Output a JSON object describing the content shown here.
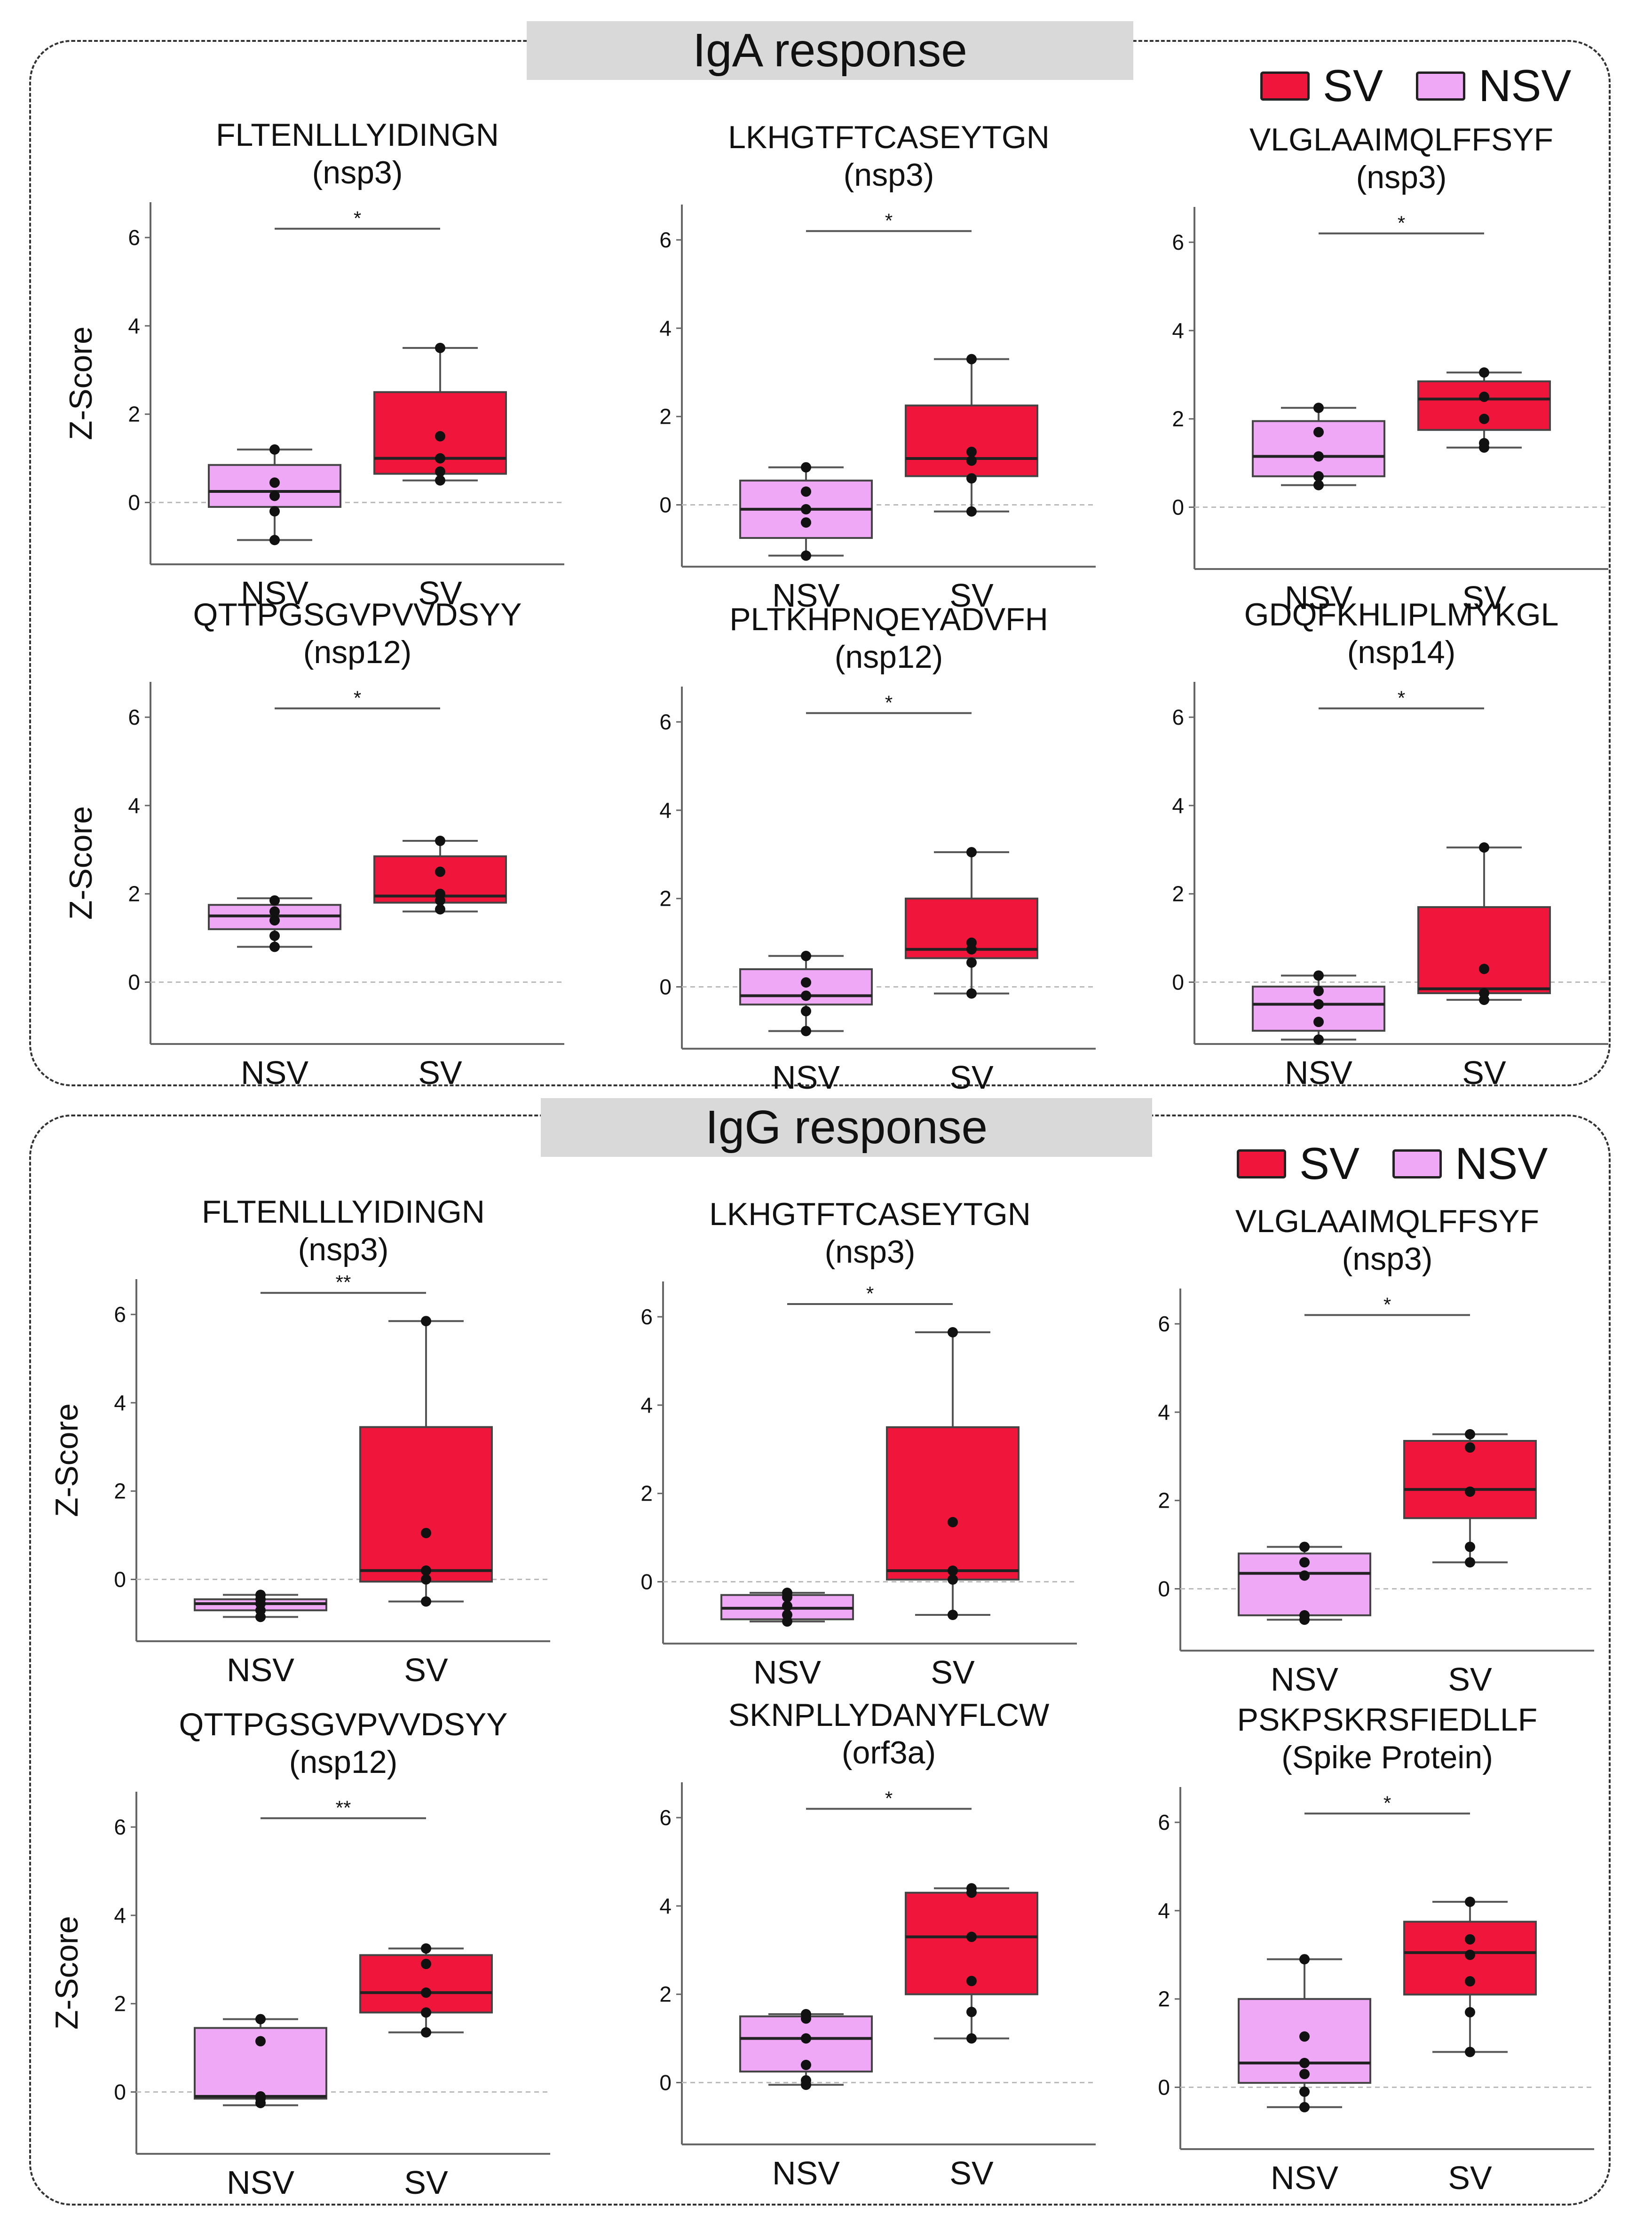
{
  "colors": {
    "sv": "#f0163b",
    "nsv": "#eea8f5",
    "axis": "#666666",
    "ref": "#bbbbbb",
    "text": "#111111"
  },
  "legend": {
    "sv_label": "SV",
    "nsv_label": "NSV"
  },
  "panels": [
    {
      "title": "IgA response"
    },
    {
      "title": "IgG response"
    }
  ],
  "chart_data": [
    {
      "type": "box",
      "panel": "IgA response",
      "title": "FLTENLLLYIDINGN",
      "subtitle": "(nsp3)",
      "ylabel": "Z-Score",
      "ylim": [
        -1.4,
        6.8
      ],
      "yticks": [
        0,
        2,
        4,
        6
      ],
      "categories": [
        "NSV",
        "SV"
      ],
      "significance": "*",
      "boxes": [
        {
          "group": "NSV",
          "whisker_low": -0.85,
          "q1": -0.1,
          "median": 0.25,
          "q3": 0.85,
          "whisker_high": 1.2,
          "points": [
            -0.85,
            -0.2,
            0.15,
            0.45,
            1.2
          ]
        },
        {
          "group": "SV",
          "whisker_low": 0.5,
          "q1": 0.65,
          "median": 1.0,
          "q3": 2.5,
          "whisker_high": 3.5,
          "points": [
            0.5,
            0.7,
            1.0,
            1.5,
            3.5
          ]
        }
      ]
    },
    {
      "type": "box",
      "panel": "IgA response",
      "title": "LKHGTFTCASEYTGN",
      "subtitle": "(nsp3)",
      "ylabel": "",
      "ylim": [
        -1.4,
        6.8
      ],
      "yticks": [
        0,
        2,
        4,
        6
      ],
      "categories": [
        "NSV",
        "SV"
      ],
      "significance": "*",
      "boxes": [
        {
          "group": "NSV",
          "whisker_low": -1.15,
          "q1": -0.75,
          "median": -0.1,
          "q3": 0.55,
          "whisker_high": 0.85,
          "points": [
            -1.15,
            -0.4,
            -0.1,
            0.3,
            0.85
          ]
        },
        {
          "group": "SV",
          "whisker_low": -0.15,
          "q1": 0.65,
          "median": 1.05,
          "q3": 2.25,
          "whisker_high": 3.3,
          "points": [
            -0.15,
            0.6,
            1.0,
            1.2,
            3.3
          ]
        }
      ]
    },
    {
      "type": "box",
      "panel": "IgA response",
      "title": "VLGLAAIMQLFFSYF",
      "subtitle": "(nsp3)",
      "ylabel": "",
      "ylim": [
        -1.4,
        6.8
      ],
      "yticks": [
        0,
        2,
        4,
        6
      ],
      "categories": [
        "NSV",
        "SV"
      ],
      "significance": "*",
      "boxes": [
        {
          "group": "NSV",
          "whisker_low": 0.5,
          "q1": 0.7,
          "median": 1.15,
          "q3": 1.95,
          "whisker_high": 2.25,
          "points": [
            0.5,
            0.7,
            1.15,
            1.7,
            2.25
          ]
        },
        {
          "group": "SV",
          "whisker_low": 1.35,
          "q1": 1.75,
          "median": 2.45,
          "q3": 2.85,
          "whisker_high": 3.05,
          "points": [
            1.35,
            1.45,
            2.0,
            2.5,
            3.05
          ]
        }
      ]
    },
    {
      "type": "box",
      "panel": "IgA response",
      "title": "QTTPGSGVPVVDSYY",
      "subtitle": "(nsp12)",
      "ylabel": "Z-Score",
      "ylim": [
        -1.4,
        6.8
      ],
      "yticks": [
        0,
        2,
        4,
        6
      ],
      "categories": [
        "NSV",
        "SV"
      ],
      "significance": "*",
      "boxes": [
        {
          "group": "NSV",
          "whisker_low": 0.8,
          "q1": 1.2,
          "median": 1.5,
          "q3": 1.75,
          "whisker_high": 1.9,
          "points": [
            0.8,
            1.05,
            1.4,
            1.6,
            1.85
          ]
        },
        {
          "group": "SV",
          "whisker_low": 1.6,
          "q1": 1.8,
          "median": 1.95,
          "q3": 2.85,
          "whisker_high": 3.2,
          "points": [
            1.65,
            1.85,
            2.0,
            2.5,
            3.2
          ]
        }
      ]
    },
    {
      "type": "box",
      "panel": "IgA response",
      "title": "PLTKHPNQEYADVFH",
      "subtitle": "(nsp12)",
      "ylabel": "",
      "ylim": [
        -1.4,
        6.8
      ],
      "yticks": [
        0,
        2,
        4,
        6
      ],
      "categories": [
        "NSV",
        "SV"
      ],
      "significance": "*",
      "boxes": [
        {
          "group": "NSV",
          "whisker_low": -1.0,
          "q1": -0.4,
          "median": -0.2,
          "q3": 0.4,
          "whisker_high": 0.7,
          "points": [
            -1.0,
            -0.55,
            -0.2,
            0.1,
            0.7
          ]
        },
        {
          "group": "SV",
          "whisker_low": -0.15,
          "q1": 0.65,
          "median": 0.85,
          "q3": 2.0,
          "whisker_high": 3.05,
          "points": [
            -0.15,
            0.55,
            0.85,
            1.0,
            3.05
          ]
        }
      ]
    },
    {
      "type": "box",
      "panel": "IgA response",
      "title": "GDQFKHLIPLMYKGL",
      "subtitle": "(nsp14)",
      "ylabel": "",
      "ylim": [
        -1.4,
        6.8
      ],
      "yticks": [
        0,
        2,
        4,
        6
      ],
      "categories": [
        "NSV",
        "SV"
      ],
      "significance": "*",
      "boxes": [
        {
          "group": "NSV",
          "whisker_low": -1.3,
          "q1": -1.1,
          "median": -0.5,
          "q3": -0.1,
          "whisker_high": 0.15,
          "points": [
            -1.3,
            -0.9,
            -0.5,
            -0.2,
            0.15
          ]
        },
        {
          "group": "SV",
          "whisker_low": -0.4,
          "q1": -0.25,
          "median": -0.15,
          "q3": 1.7,
          "whisker_high": 3.05,
          "points": [
            -0.4,
            -0.25,
            0.3,
            3.05
          ]
        }
      ]
    },
    {
      "type": "box",
      "panel": "IgG response",
      "title": "FLTENLLLYIDINGN",
      "subtitle": "(nsp3)",
      "ylabel": "Z-Score",
      "ylim": [
        -1.4,
        6.8
      ],
      "yticks": [
        0,
        2,
        4,
        6
      ],
      "categories": [
        "NSV",
        "SV"
      ],
      "significance": "**",
      "boxes": [
        {
          "group": "NSV",
          "whisker_low": -0.85,
          "q1": -0.7,
          "median": -0.55,
          "q3": -0.45,
          "whisker_high": -0.35,
          "points": [
            -0.85,
            -0.7,
            -0.55,
            -0.45,
            -0.35
          ]
        },
        {
          "group": "SV",
          "whisker_low": -0.5,
          "q1": -0.05,
          "median": 0.2,
          "q3": 3.45,
          "whisker_high": 5.85,
          "points": [
            -0.5,
            0.0,
            0.2,
            1.05,
            5.85
          ]
        }
      ]
    },
    {
      "type": "box",
      "panel": "IgG response",
      "title": "LKHGTFTCASEYTGN",
      "subtitle": "(nsp3)",
      "ylabel": "",
      "ylim": [
        -1.4,
        6.8
      ],
      "yticks": [
        0,
        2,
        4,
        6
      ],
      "categories": [
        "NSV",
        "SV"
      ],
      "significance": "*",
      "boxes": [
        {
          "group": "NSV",
          "whisker_low": -0.9,
          "q1": -0.85,
          "median": -0.6,
          "q3": -0.3,
          "whisker_high": -0.25,
          "points": [
            -0.9,
            -0.75,
            -0.55,
            -0.35,
            -0.25
          ]
        },
        {
          "group": "SV",
          "whisker_low": -0.75,
          "q1": 0.05,
          "median": 0.25,
          "q3": 3.5,
          "whisker_high": 5.65,
          "points": [
            -0.75,
            0.05,
            0.25,
            1.35,
            5.65
          ]
        }
      ]
    },
    {
      "type": "box",
      "panel": "IgG response",
      "title": "VLGLAAIMQLFFSYF",
      "subtitle": "(nsp3)",
      "ylabel": "",
      "ylim": [
        -1.4,
        6.8
      ],
      "yticks": [
        0,
        2,
        4,
        6
      ],
      "categories": [
        "NSV",
        "SV"
      ],
      "significance": "*",
      "boxes": [
        {
          "group": "NSV",
          "whisker_low": -0.7,
          "q1": -0.6,
          "median": 0.35,
          "q3": 0.8,
          "whisker_high": 0.95,
          "points": [
            -0.7,
            -0.6,
            0.3,
            0.6,
            0.95
          ]
        },
        {
          "group": "SV",
          "whisker_low": 0.6,
          "q1": 1.6,
          "median": 2.25,
          "q3": 3.35,
          "whisker_high": 3.5,
          "points": [
            0.6,
            0.95,
            2.2,
            3.2,
            3.5
          ]
        }
      ]
    },
    {
      "type": "box",
      "panel": "IgG response",
      "title": "QTTPGSGVPVVDSYY",
      "subtitle": "(nsp12)",
      "ylabel": "Z-Score",
      "ylim": [
        -1.4,
        6.8
      ],
      "yticks": [
        0,
        2,
        4,
        6
      ],
      "categories": [
        "NSV",
        "SV"
      ],
      "significance": "**",
      "boxes": [
        {
          "group": "NSV",
          "whisker_low": -0.3,
          "q1": -0.15,
          "median": -0.1,
          "q3": 1.45,
          "whisker_high": 1.65,
          "points": [
            -0.25,
            -0.15,
            -0.1,
            1.15,
            1.65
          ]
        },
        {
          "group": "SV",
          "whisker_low": 1.35,
          "q1": 1.8,
          "median": 2.25,
          "q3": 3.1,
          "whisker_high": 3.25,
          "points": [
            1.35,
            1.8,
            2.25,
            2.9,
            3.25
          ]
        }
      ]
    },
    {
      "type": "box",
      "panel": "IgG response",
      "title": "SKNPLLYDANYFLCW",
      "subtitle": "(orf3a)",
      "ylabel": "",
      "ylim": [
        -1.4,
        6.8
      ],
      "yticks": [
        0,
        2,
        4,
        6
      ],
      "categories": [
        "NSV",
        "SV"
      ],
      "significance": "*",
      "boxes": [
        {
          "group": "NSV",
          "whisker_low": -0.05,
          "q1": 0.25,
          "median": 1.0,
          "q3": 1.5,
          "whisker_high": 1.55,
          "points": [
            -0.05,
            0.05,
            0.4,
            1.0,
            1.45,
            1.55
          ]
        },
        {
          "group": "SV",
          "whisker_low": 1.0,
          "q1": 2.0,
          "median": 3.3,
          "q3": 4.3,
          "whisker_high": 4.4,
          "points": [
            1.0,
            1.6,
            2.3,
            3.3,
            4.3,
            4.4
          ]
        }
      ]
    },
    {
      "type": "box",
      "panel": "IgG response",
      "title": "PSKPSKRSFIEDLLF",
      "subtitle": "(Spike Protein)",
      "ylabel": "",
      "ylim": [
        -1.4,
        6.8
      ],
      "yticks": [
        0,
        2,
        4,
        6
      ],
      "categories": [
        "NSV",
        "SV"
      ],
      "significance": "*",
      "boxes": [
        {
          "group": "NSV",
          "whisker_low": -0.45,
          "q1": 0.1,
          "median": 0.55,
          "q3": 2.0,
          "whisker_high": 2.9,
          "points": [
            -0.45,
            -0.1,
            0.3,
            0.55,
            1.15,
            2.9
          ]
        },
        {
          "group": "SV",
          "whisker_low": 0.8,
          "q1": 2.1,
          "median": 3.05,
          "q3": 3.75,
          "whisker_high": 4.2,
          "points": [
            0.8,
            1.7,
            2.4,
            3.0,
            3.35,
            4.2
          ]
        }
      ]
    }
  ]
}
